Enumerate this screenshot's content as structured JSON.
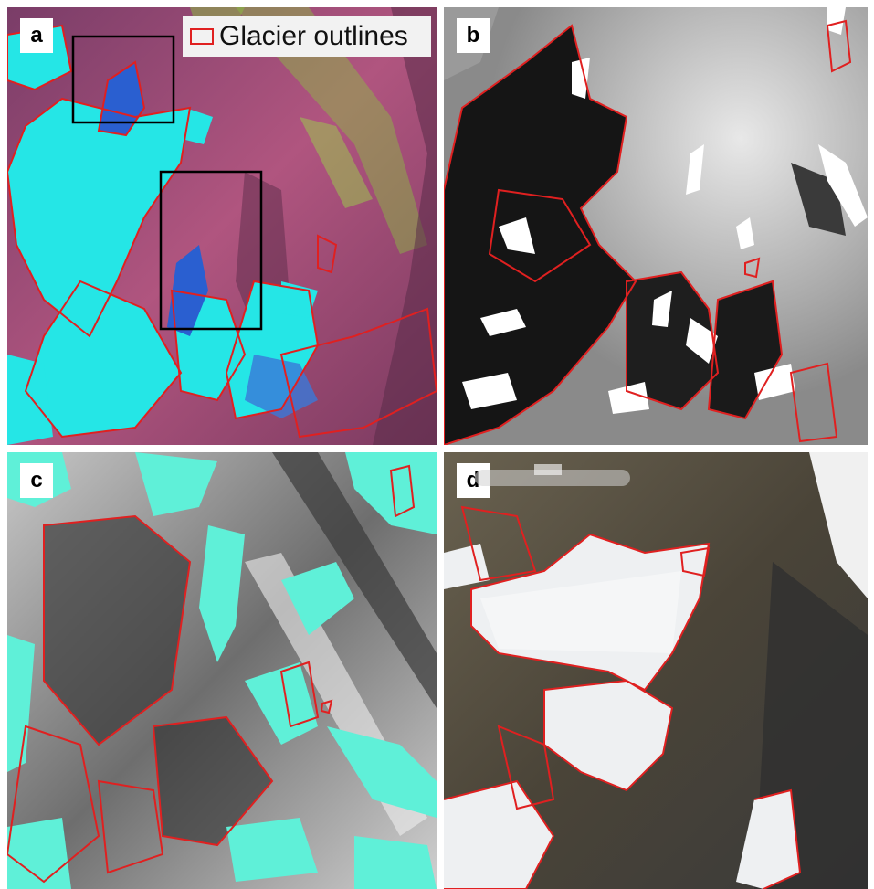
{
  "panels": [
    {
      "label": "a"
    },
    {
      "label": "b"
    },
    {
      "label": "c"
    },
    {
      "label": "d"
    }
  ],
  "legend": {
    "text": "Glacier outlines",
    "color": "#e02020"
  },
  "colors": {
    "outline": "#e02020",
    "ice_cyan": "#25e6e6",
    "terrain_magenta": "#a04a78",
    "vegetation_green": "#8ac040",
    "mask_white": "#ffffff",
    "mask_aqua": "#5ff0d8"
  }
}
